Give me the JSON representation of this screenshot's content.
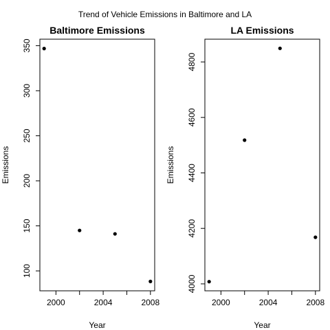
{
  "title": "Trend of Vehicle Emissions in Baltimore and LA",
  "colors": {
    "background": "#ffffff",
    "axis": "#000000",
    "point": "#000000"
  },
  "chart_data": [
    {
      "type": "scatter",
      "title": "Baltimore Emissions",
      "xlabel": "Year",
      "ylabel": "Emissions",
      "x": [
        1999,
        2002,
        2005,
        2008
      ],
      "y": [
        346.8,
        144.9,
        141.1,
        88.3
      ],
      "xlim": [
        1998.64,
        2008.36
      ],
      "ylim": [
        77.9,
        357.2
      ],
      "xticks": [
        2000,
        2004,
        2008
      ],
      "xtick_labels": [
        "2000",
        "2004",
        "2008"
      ],
      "xticks_minor": [
        2002,
        2006
      ],
      "yticks": [
        100,
        150,
        200,
        250,
        300,
        350
      ],
      "ytick_labels": [
        "100",
        "150",
        "200",
        "250",
        "300",
        "350"
      ],
      "grid": false,
      "legend": "none"
    },
    {
      "type": "scatter",
      "title": "LA Emissions",
      "xlabel": "Year",
      "ylabel": "Emissions",
      "x": [
        1999,
        2002,
        2005,
        2008
      ],
      "y": [
        4008,
        4518,
        4849,
        4168
      ],
      "xlim": [
        1998.64,
        2008.36
      ],
      "ylim": [
        3975,
        4882
      ],
      "xticks": [
        2000,
        2004,
        2008
      ],
      "xtick_labels": [
        "2000",
        "2004",
        "2008"
      ],
      "xticks_minor": [
        2002,
        2006
      ],
      "yticks": [
        4000,
        4200,
        4400,
        4600,
        4800
      ],
      "ytick_labels": [
        "4000",
        "4200",
        "4400",
        "4600",
        "4800"
      ],
      "grid": false,
      "legend": "none"
    }
  ]
}
